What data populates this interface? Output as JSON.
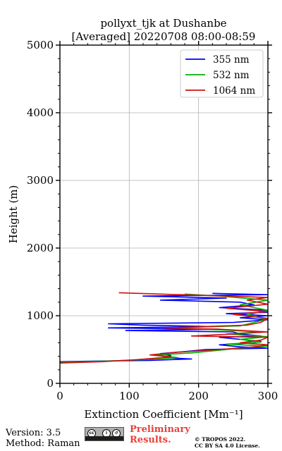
{
  "chart_data": {
    "type": "line",
    "title": "pollyxt_tjk at Dushanbe",
    "subtitle": "[Averaged] 20220708 08:00-08:59",
    "xlabel": "Extinction Coefficient [Mm⁻¹]",
    "ylabel": "Height (m)",
    "xlim": [
      0,
      300
    ],
    "ylim": [
      0,
      5000
    ],
    "x_ticks": [
      "0",
      "100",
      "200",
      "300"
    ],
    "y_ticks": [
      "0",
      "1000",
      "2000",
      "3000",
      "4000",
      "5000"
    ],
    "grid": true,
    "legend_position": "top-right",
    "series": [
      {
        "name": "355 nm",
        "color": "#0000ff",
        "points": [
          [
            0,
            320
          ],
          [
            60,
            330
          ],
          [
            130,
            340
          ],
          [
            190,
            360
          ],
          [
            150,
            380
          ],
          [
            160,
            410
          ],
          [
            145,
            440
          ],
          [
            180,
            470
          ],
          [
            210,
            500
          ],
          [
            300,
            520
          ],
          [
            260,
            540
          ],
          [
            230,
            570
          ],
          [
            280,
            600
          ],
          [
            290,
            620
          ],
          [
            260,
            650
          ],
          [
            230,
            680
          ],
          [
            290,
            700
          ],
          [
            260,
            730
          ],
          [
            250,
            760
          ],
          [
            95,
            780
          ],
          [
            230,
            800
          ],
          [
            70,
            820
          ],
          [
            220,
            840
          ],
          [
            120,
            860
          ],
          [
            70,
            880
          ],
          [
            250,
            900
          ],
          [
            300,
            940
          ],
          [
            260,
            970
          ],
          [
            300,
            1000
          ],
          [
            240,
            1030
          ],
          [
            300,
            1050
          ],
          [
            300,
            1080
          ],
          [
            230,
            1120
          ],
          [
            280,
            1160
          ],
          [
            260,
            1200
          ],
          [
            145,
            1230
          ],
          [
            240,
            1260
          ],
          [
            120,
            1290
          ],
          [
            300,
            1310
          ],
          [
            220,
            1330
          ]
        ]
      },
      {
        "name": "532 nm",
        "color": "#00b000",
        "points": [
          [
            0,
            310
          ],
          [
            70,
            330
          ],
          [
            120,
            350
          ],
          [
            170,
            380
          ],
          [
            140,
            420
          ],
          [
            190,
            450
          ],
          [
            220,
            480
          ],
          [
            260,
            520
          ],
          [
            300,
            550
          ],
          [
            240,
            580
          ],
          [
            290,
            610
          ],
          [
            260,
            650
          ],
          [
            300,
            690
          ],
          [
            240,
            730
          ],
          [
            290,
            760
          ],
          [
            230,
            790
          ],
          [
            160,
            820
          ],
          [
            260,
            850
          ],
          [
            280,
            900
          ],
          [
            300,
            950
          ],
          [
            270,
            1010
          ],
          [
            300,
            1080
          ],
          [
            260,
            1160
          ],
          [
            300,
            1230
          ],
          [
            230,
            1290
          ],
          [
            180,
            1320
          ]
        ]
      },
      {
        "name": "1064 nm",
        "color": "#d01010",
        "points": [
          [
            0,
            300
          ],
          [
            60,
            320
          ],
          [
            110,
            350
          ],
          [
            160,
            390
          ],
          [
            130,
            420
          ],
          [
            170,
            460
          ],
          [
            230,
            500
          ],
          [
            280,
            540
          ],
          [
            300,
            570
          ],
          [
            260,
            600
          ],
          [
            290,
            640
          ],
          [
            300,
            680
          ],
          [
            190,
            700
          ],
          [
            250,
            730
          ],
          [
            300,
            760
          ],
          [
            230,
            800
          ],
          [
            150,
            820
          ],
          [
            270,
            860
          ],
          [
            290,
            900
          ],
          [
            300,
            960
          ],
          [
            250,
            1020
          ],
          [
            300,
            1060
          ],
          [
            240,
            1110
          ],
          [
            300,
            1170
          ],
          [
            270,
            1230
          ],
          [
            300,
            1270
          ],
          [
            85,
            1340
          ]
        ]
      }
    ]
  },
  "footer": {
    "version": "Version: 3.5",
    "method": "Method: Raman",
    "preliminary_line1": "Preliminary",
    "preliminary_line2": "Results.",
    "copyright_line1": "© TROPOS 2022.",
    "copyright_line2": "CC BY SA 4.0 License.",
    "license_badge": "cc by sa"
  }
}
